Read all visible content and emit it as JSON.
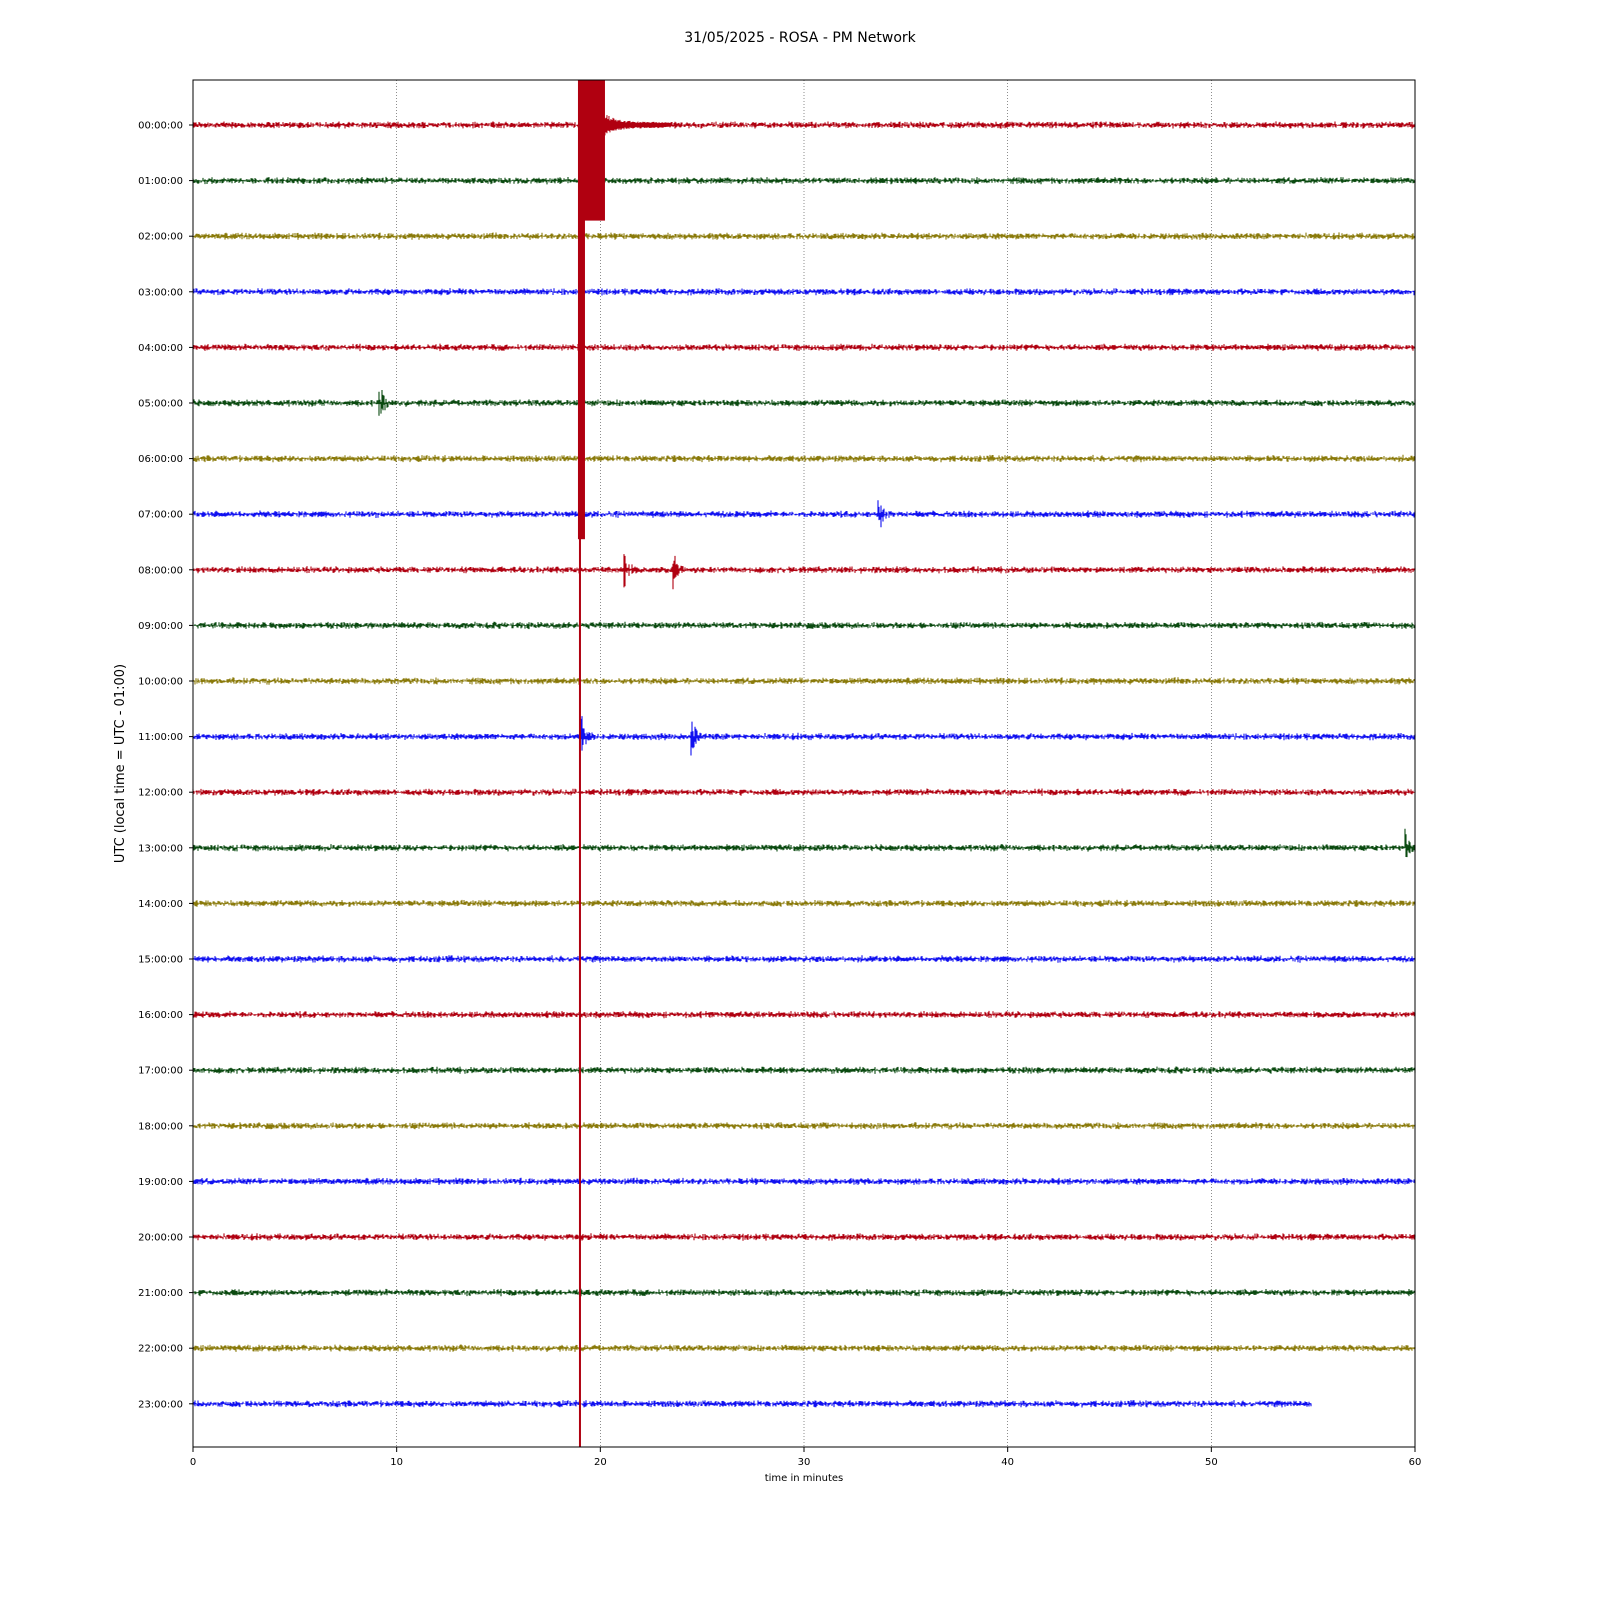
{
  "chart_data": {
    "type": "line",
    "title": "31/05/2025 - ROSA - PM Network",
    "xlabel": "time in minutes",
    "ylabel": "UTC (local time = UTC - 01:00)",
    "xlim": [
      0,
      60
    ],
    "x_ticks": [
      0,
      10,
      20,
      30,
      40,
      50,
      60
    ],
    "grid": "vertical dotted at 10, 20, 30, 40, 50",
    "colors": [
      "#b00010",
      "#0a4a10",
      "#8a7a0a",
      "#1010f0"
    ],
    "rows": [
      {
        "label": "00:00:00",
        "end_minute": 60
      },
      {
        "label": "01:00:00",
        "end_minute": 60
      },
      {
        "label": "02:00:00",
        "end_minute": 60
      },
      {
        "label": "03:00:00",
        "end_minute": 60
      },
      {
        "label": "04:00:00",
        "end_minute": 60
      },
      {
        "label": "05:00:00",
        "end_minute": 60
      },
      {
        "label": "06:00:00",
        "end_minute": 60
      },
      {
        "label": "07:00:00",
        "end_minute": 60
      },
      {
        "label": "08:00:00",
        "end_minute": 60
      },
      {
        "label": "09:00:00",
        "end_minute": 60
      },
      {
        "label": "10:00:00",
        "end_minute": 60
      },
      {
        "label": "11:00:00",
        "end_minute": 60
      },
      {
        "label": "12:00:00",
        "end_minute": 60
      },
      {
        "label": "13:00:00",
        "end_minute": 60
      },
      {
        "label": "14:00:00",
        "end_minute": 60
      },
      {
        "label": "15:00:00",
        "end_minute": 60
      },
      {
        "label": "16:00:00",
        "end_minute": 60
      },
      {
        "label": "17:00:00",
        "end_minute": 60
      },
      {
        "label": "18:00:00",
        "end_minute": 60
      },
      {
        "label": "19:00:00",
        "end_minute": 60
      },
      {
        "label": "20:00:00",
        "end_minute": 60
      },
      {
        "label": "21:00:00",
        "end_minute": 60
      },
      {
        "label": "22:00:00",
        "end_minute": 60
      },
      {
        "label": "23:00:00",
        "end_minute": 54.9
      }
    ],
    "events": [
      {
        "row": 0,
        "minute": 19.0,
        "amplitude": "clipped large earthquake, coda to ~23 min"
      },
      {
        "row": 5,
        "minute": 9.2,
        "amplitude": "small local event"
      },
      {
        "row": 7,
        "minute": 33.7,
        "amplitude": "local event"
      },
      {
        "row": 8,
        "minute": 21.2,
        "amplitude": "event"
      },
      {
        "row": 8,
        "minute": 23.6,
        "amplitude": "event"
      },
      {
        "row": 11,
        "minute": 19.1,
        "amplitude": "event"
      },
      {
        "row": 11,
        "minute": 24.5,
        "amplitude": "event"
      },
      {
        "row": 13,
        "minute": 59.5,
        "amplitude": "event"
      }
    ]
  }
}
